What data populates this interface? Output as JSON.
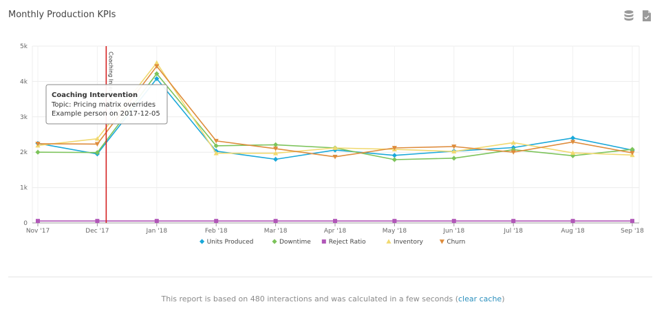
{
  "header": {
    "title": "Monthly Production KPIs",
    "icons": [
      "database-icon",
      "export-document-icon"
    ]
  },
  "colors": {
    "units_produced": "#1aa8d9",
    "downtime": "#7cc35a",
    "reject_ratio": "#b157b8",
    "inventory": "#f1d96f",
    "churn": "#de8c3c",
    "event_line": "#d42020"
  },
  "chart_data": {
    "type": "line",
    "x": [
      "Nov '17",
      "Dec '17",
      "Jan '18",
      "Feb '18",
      "Mar '18",
      "Apr '18",
      "May '18",
      "Jun '18",
      "Jul '18",
      "Aug '18",
      "Sep '18"
    ],
    "y_ticks": [
      "0",
      "1k",
      "2k",
      "3k",
      "4k",
      "5k"
    ],
    "ylim": [
      0,
      5000
    ],
    "grid": true,
    "legend_position": "bottom",
    "series": [
      {
        "name": "Units Produced",
        "color": "#1aa8d9",
        "marker": "diamond",
        "values": [
          2250,
          1950,
          4080,
          2030,
          1800,
          2060,
          1910,
          2030,
          2130,
          2400,
          2060
        ]
      },
      {
        "name": "Downtime",
        "color": "#7cc35a",
        "marker": "diamond",
        "values": [
          2000,
          1990,
          4220,
          2180,
          2210,
          2120,
          1790,
          1830,
          2070,
          1900,
          2080
        ]
      },
      {
        "name": "Reject Ratio",
        "color": "#b157b8",
        "marker": "square",
        "values": [
          55,
          55,
          55,
          55,
          55,
          55,
          55,
          55,
          55,
          55,
          55
        ]
      },
      {
        "name": "Inventory",
        "color": "#f1d96f",
        "marker": "triangle",
        "values": [
          2190,
          2380,
          4530,
          1970,
          1970,
          2120,
          2080,
          2020,
          2270,
          1980,
          1920
        ]
      },
      {
        "name": "Churn",
        "color": "#de8c3c",
        "marker": "triangle-down",
        "values": [
          2240,
          2230,
          4430,
          2320,
          2100,
          1870,
          2120,
          2160,
          2000,
          2290,
          1980
        ]
      }
    ],
    "event": {
      "label": "Coaching Intervention",
      "date_index": 1.15,
      "tooltip_title": "Coaching Intervention",
      "tooltip_lines": [
        "Topic: Pricing matrix overrides",
        "Example person on 2017-12-05"
      ]
    }
  },
  "footer": {
    "text": "This report is based on 480 interactions and was calculated in a few seconds (",
    "link": "clear cache",
    "close": ")"
  }
}
